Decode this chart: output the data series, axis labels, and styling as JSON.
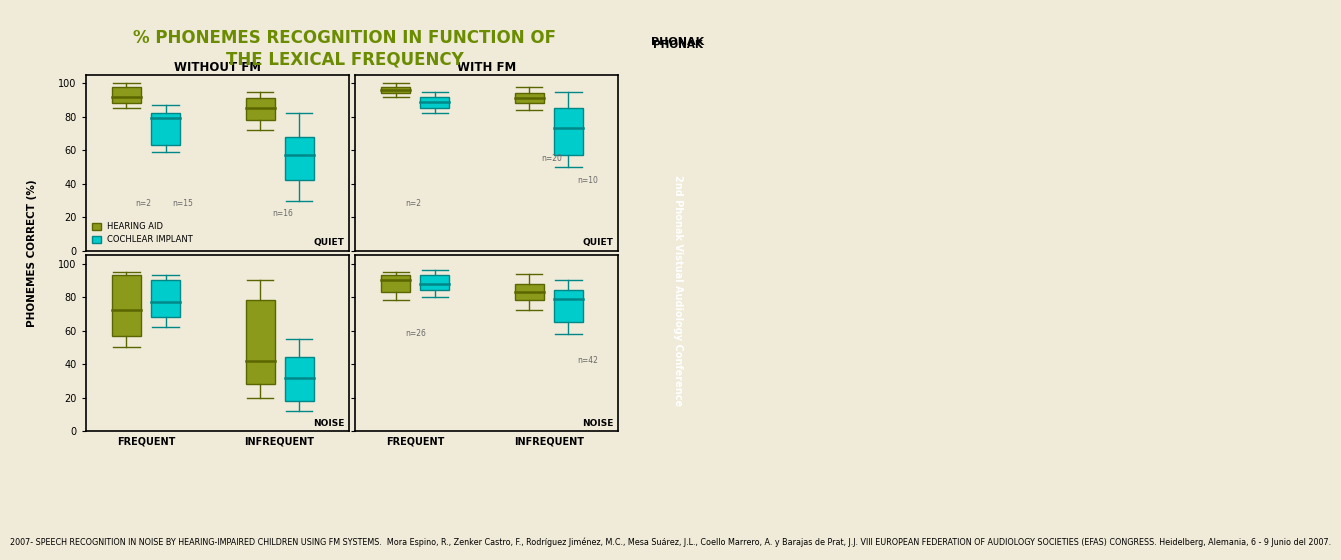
{
  "title_line1": "% PHONEMES RECOGNITION IN FUNCTION OF",
  "title_line2": "THE LEXICAL FREQUENCY",
  "title_color": "#6b8c00",
  "bg_color": "#f0ead8",
  "ha_color": "#8b9a1a",
  "ci_color": "#00cccc",
  "ha_color_dark": "#5a6600",
  "ci_color_dark": "#008888",
  "subplot_titles": [
    "WITHOUT FM",
    "WITH FM"
  ],
  "freq_labels": [
    "FREQUENT",
    "INFREQUENT"
  ],
  "legend_labels": [
    "HEARING AID",
    "COCHLEAR IMPLANT"
  ],
  "ylabel": "PHONEMES CORRECT (%)",
  "right_bar_color": "#7ab648",
  "right_bar_text_top": "PHONAK",
  "right_bar_text_rot": "2nd Phonak Vistual Audiology Conference",
  "footnote": "2007- SPEECH RECOGNITION IN NOISE BY HEARING-IMPAIRED CHILDREN USING FM SYSTEMS.  Mora Espino, R., Zenker Castro, F., Rodríguez Jiménez, M.C., Mesa Suárez, J.L., Coello Marrero, A. y Barajas de Prat, J.J. VIII EUROPEAN FEDERATION OF AUDIOLOGY SOCIETIES (EFAS) CONGRESS. Heidelberg, Alemania, 6 - 9 Junio del 2007.",
  "boxes": {
    "top_left": {
      "frequent_ha": {
        "q1": 88,
        "median": 92,
        "q3": 98,
        "whislo": 85,
        "whishi": 100,
        "fliers": []
      },
      "frequent_ci": {
        "q1": 63,
        "median": 79,
        "q3": 82,
        "whislo": 59,
        "whishi": 87,
        "fliers": []
      },
      "infreq_ha": {
        "q1": 78,
        "median": 85,
        "q3": 91,
        "whislo": 72,
        "whishi": 95,
        "fliers": []
      },
      "infreq_ci": {
        "q1": 42,
        "median": 57,
        "q3": 68,
        "whislo": 30,
        "whishi": 82,
        "fliers": []
      },
      "outlier_text": [
        [
          "n=2",
          0.8,
          28
        ],
        [
          "n=15",
          1.2,
          28
        ],
        [
          "n=16",
          2.3,
          22
        ]
      ],
      "condition": "QUIET"
    },
    "top_right": {
      "frequent_ha": {
        "q1": 94,
        "median": 96,
        "q3": 98,
        "whislo": 92,
        "whishi": 100,
        "fliers": []
      },
      "frequent_ci": {
        "q1": 85,
        "median": 89,
        "q3": 92,
        "whislo": 82,
        "whishi": 95,
        "fliers": []
      },
      "infreq_ha": {
        "q1": 88,
        "median": 91,
        "q3": 94,
        "whislo": 84,
        "whishi": 98,
        "fliers": []
      },
      "infreq_ci": {
        "q1": 57,
        "median": 73,
        "q3": 85,
        "whislo": 50,
        "whishi": 95,
        "fliers": []
      },
      "outlier_text": [
        [
          "n=2",
          0.8,
          28
        ],
        [
          "n=20",
          2.3,
          55
        ],
        [
          "n=10",
          2.7,
          42
        ]
      ],
      "condition": "QUIET"
    },
    "bot_left": {
      "frequent_ha": {
        "q1": 57,
        "median": 72,
        "q3": 93,
        "whislo": 50,
        "whishi": 95,
        "fliers": []
      },
      "frequent_ci": {
        "q1": 68,
        "median": 77,
        "q3": 90,
        "whislo": 62,
        "whishi": 93,
        "fliers": []
      },
      "infreq_ha": {
        "q1": 28,
        "median": 42,
        "q3": 78,
        "whislo": 20,
        "whishi": 90,
        "fliers": []
      },
      "infreq_ci": {
        "q1": 18,
        "median": 32,
        "q3": 44,
        "whislo": 12,
        "whishi": 55,
        "fliers": []
      },
      "outlier_text": [],
      "condition": "NOISE"
    },
    "bot_right": {
      "frequent_ha": {
        "q1": 83,
        "median": 90,
        "q3": 93,
        "whislo": 78,
        "whishi": 95,
        "fliers": []
      },
      "frequent_ci": {
        "q1": 84,
        "median": 88,
        "q3": 93,
        "whislo": 80,
        "whishi": 96,
        "fliers": []
      },
      "infreq_ha": {
        "q1": 78,
        "median": 83,
        "q3": 88,
        "whislo": 72,
        "whishi": 94,
        "fliers": []
      },
      "infreq_ci": {
        "q1": 65,
        "median": 79,
        "q3": 84,
        "whislo": 58,
        "whishi": 90,
        "fliers": []
      },
      "outlier_text": [
        [
          "n=26",
          0.8,
          58
        ],
        [
          "n=42",
          2.7,
          42
        ]
      ],
      "condition": "NOISE"
    }
  }
}
